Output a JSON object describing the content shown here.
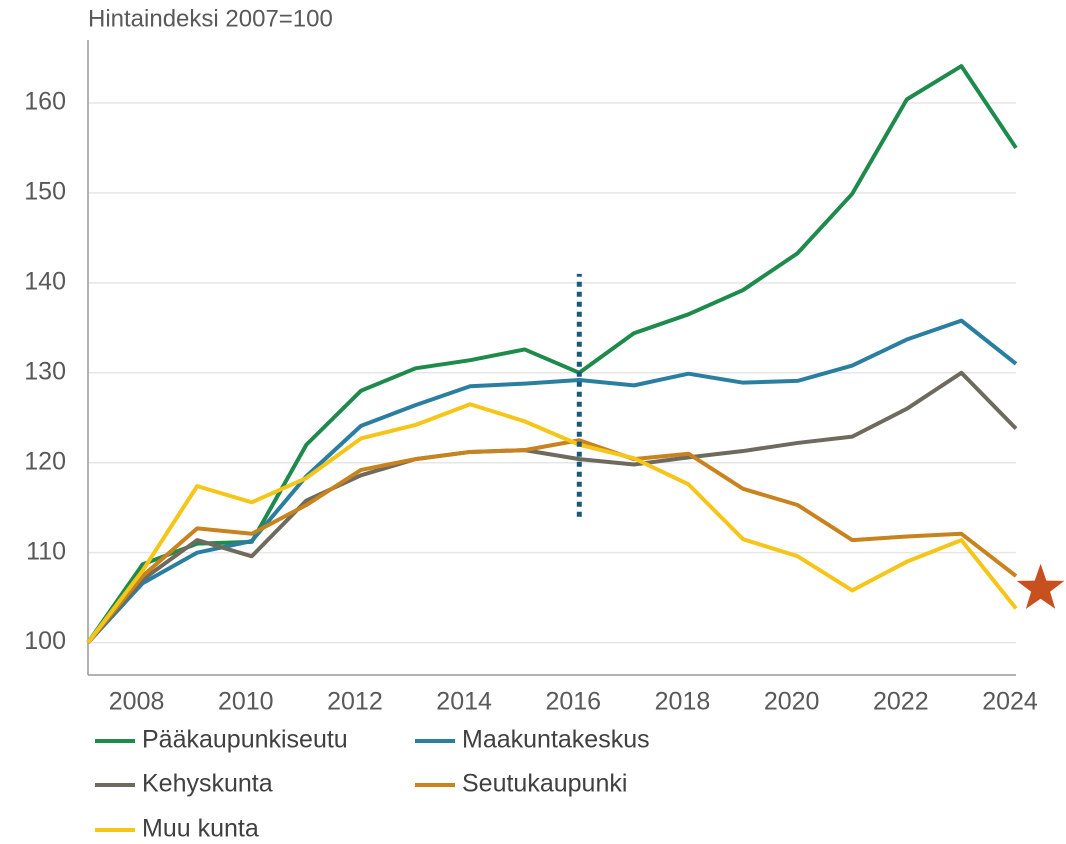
{
  "chart_data": {
    "type": "line",
    "title": "Hintaindeksi 2007=100",
    "x": [
      2007,
      2008,
      2009,
      2010,
      2011,
      2012,
      2013,
      2014,
      2015,
      2016,
      2017,
      2018,
      2019,
      2020,
      2021,
      2022,
      2023,
      2024
    ],
    "series": [
      {
        "name": "Pääkaupunkiseutu",
        "color": "#1e8a4c",
        "values": [
          100,
          108.7,
          111,
          111.2,
          122,
          128,
          130.5,
          131.4,
          132.6,
          130,
          134.4,
          136.5,
          139.2,
          143.3,
          149.9,
          160.4,
          164.1,
          155
        ]
      },
      {
        "name": "Maakuntakeskus",
        "color": "#2a7fa0",
        "values": [
          100,
          106.6,
          110,
          111.3,
          118.5,
          124.1,
          126.4,
          128.5,
          128.8,
          129.2,
          128.6,
          129.9,
          128.9,
          129.1,
          130.8,
          133.7,
          135.8,
          131
        ]
      },
      {
        "name": "Kehyskunta",
        "color": "#6e6a5e",
        "values": [
          100,
          107,
          111.4,
          109.6,
          115.8,
          118.6,
          120.4,
          121.2,
          121.4,
          120.4,
          119.8,
          120.6,
          121.3,
          122.2,
          122.9,
          126,
          130,
          123.8
        ]
      },
      {
        "name": "Seutukaupunki",
        "color": "#c8821e",
        "values": [
          100,
          107.4,
          112.7,
          112.1,
          115.3,
          119.2,
          120.4,
          121.2,
          121.4,
          122.5,
          120.4,
          121,
          117.1,
          115.3,
          111.4,
          111.8,
          112.1,
          107.4
        ]
      },
      {
        "name": "Muu kunta",
        "color": "#f5c518",
        "values": [
          100,
          108,
          117.4,
          115.6,
          118.3,
          122.7,
          124.2,
          126.5,
          124.6,
          122,
          120.5,
          117.6,
          111.5,
          109.6,
          105.8,
          109,
          111.4,
          103.8
        ]
      }
    ],
    "xlim": [
      2007,
      2024
    ],
    "xticks": [
      2008,
      2010,
      2012,
      2014,
      2016,
      2018,
      2020,
      2022,
      2024
    ],
    "ylim": [
      96.4,
      167
    ],
    "yticks": [
      100,
      110,
      120,
      130,
      140,
      150,
      160
    ],
    "grid": true,
    "vline": {
      "x": 2016,
      "y": [
        114,
        141
      ],
      "color": "#1a5a78"
    },
    "star": {
      "x": 2024.45,
      "y": 106,
      "color": "#c8501e"
    }
  }
}
